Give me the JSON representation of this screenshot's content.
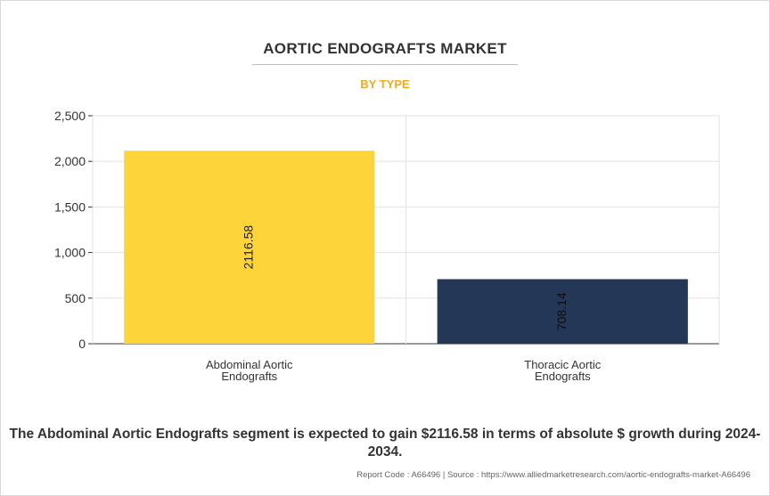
{
  "header": {
    "title": "AORTIC ENDOGRAFTS MARKET",
    "subtitle": "BY TYPE"
  },
  "colors": {
    "subtitle": "#f0ad1e",
    "grid": "#e2e2e2",
    "axis": "#333333"
  },
  "chart_data": {
    "type": "bar",
    "categories": [
      [
        "Abdominal Aortic",
        "Endografts"
      ],
      [
        "Thoracic Aortic",
        "Endografts"
      ]
    ],
    "values": [
      2116.58,
      708.14
    ],
    "value_labels": [
      "2116.58",
      "708.14"
    ],
    "bar_colors": [
      "#fed43b",
      "#243757"
    ],
    "ylim": [
      0,
      2500
    ],
    "yticks": [
      0,
      500,
      1000,
      1500,
      2000,
      2500
    ],
    "ytick_labels": [
      "0",
      "500",
      "1,000",
      "1,500",
      "2,000",
      "2,500"
    ],
    "grid": true,
    "xlabel": "",
    "ylabel": ""
  },
  "footer": {
    "summary": "The Abdominal Aortic Endografts segment is expected to gain $2116.58 in terms of absolute $ growth during 2024-2034.",
    "source": "Report Code : A66496  |  Source : https://www.alliedmarketresearch.com/aortic-endografts-market-A66496"
  }
}
